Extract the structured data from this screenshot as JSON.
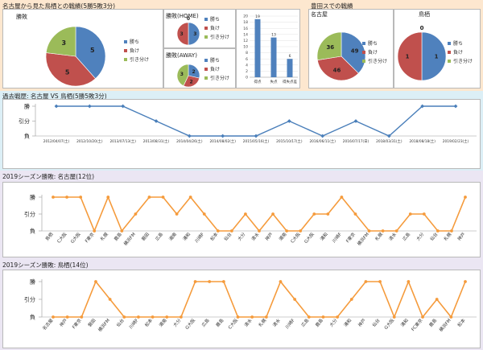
{
  "colors": {
    "win": "#4f81bd",
    "loss": "#c0504d",
    "draw": "#9bbb59",
    "line": "#4a7fba",
    "orange": "#f59b3c",
    "bar": "#4f81bd"
  },
  "sections": {
    "top_left_title": "名古屋から見た鳥栖との戦績(5勝5敗3分)",
    "top_right_title": "豊田スでの戦績",
    "history_title": "過去戦歴: 名古屋 VS 鳥栖(5勝5敗3分)",
    "nagoya_title": "2019シーズン勝敗: 名古屋(12位)",
    "tosu_title": "2019シーズン勝敗: 鳥栖(14位)"
  },
  "chart_data": [
    {
      "id": "overall",
      "type": "pie",
      "title": "勝敗",
      "labels": [
        "勝ち",
        "負け",
        "引き分け"
      ],
      "values": [
        5,
        5,
        3
      ],
      "legend": "right"
    },
    {
      "id": "home",
      "type": "pie",
      "title": "勝敗(HOME)",
      "labels": [
        "勝ち",
        "負け",
        "引き分け"
      ],
      "values": [
        3,
        3,
        0
      ],
      "legend": "right"
    },
    {
      "id": "away",
      "type": "pie",
      "title": "勝敗(AWAY)",
      "labels": [
        "勝ち",
        "負け",
        "引き分け"
      ],
      "values": [
        2,
        2,
        3
      ],
      "legend": "right"
    },
    {
      "id": "goals",
      "type": "bar",
      "categories": [
        "得点",
        "失点",
        "得失点差"
      ],
      "values": [
        19,
        13,
        6
      ],
      "ylim": [
        0,
        20
      ],
      "yticks": [
        0,
        2,
        4,
        6,
        8,
        10,
        12,
        14,
        16,
        18,
        20
      ]
    },
    {
      "id": "toyota_nagoya",
      "type": "pie",
      "title": "名古屋",
      "labels": [
        "勝ち",
        "負け",
        "引き分け"
      ],
      "values": [
        49,
        46,
        36
      ],
      "legend": "right"
    },
    {
      "id": "toyota_tosu",
      "type": "pie",
      "title": "鳥栖",
      "labels": [
        "勝ち",
        "負け",
        "引き分け"
      ],
      "values": [
        1,
        1,
        0
      ],
      "legend": "right"
    },
    {
      "id": "history",
      "type": "line",
      "y_levels": [
        "勝",
        "引分",
        "負"
      ],
      "x": [
        "2012/04/07(土)",
        "2012/10/20(土)",
        "2013/07/13(土)",
        "2013/08/31(土)",
        "2014/04/26(土)",
        "2014/08/02(土)",
        "2015/05/16(土)",
        "2015/10/17(土)",
        "2016/06/11(土)",
        "2016/07/17(日)",
        "2018/03/31(土)",
        "2018/08/18(土)",
        "2019/02/23(土)"
      ],
      "values": [
        2,
        2,
        2,
        1,
        0,
        0,
        0,
        1,
        0,
        1,
        0,
        2,
        2
      ]
    },
    {
      "id": "nagoya_2019",
      "type": "line",
      "y_levels": [
        "勝",
        "引分",
        "負"
      ],
      "x": [
        "鳥栖",
        "C大阪",
        "G大阪",
        "F東京",
        "札幌",
        "鹿島",
        "横浜FM",
        "磐田",
        "広島",
        "湘南",
        "浦和",
        "川崎F",
        "松本",
        "仙台",
        "大分",
        "清水",
        "神戸",
        "湘南",
        "C大阪",
        "G大阪",
        "浦和",
        "川崎F",
        "F東京",
        "横浜FM",
        "札幌",
        "清水",
        "広島",
        "大分",
        "仙台",
        "札幌",
        "神戸"
      ],
      "values": [
        2,
        2,
        2,
        0,
        2,
        0,
        1,
        2,
        2,
        1,
        2,
        1,
        0,
        0,
        1,
        0,
        1,
        0,
        0,
        1,
        1,
        2,
        1,
        0,
        0,
        0,
        1,
        1,
        0,
        0,
        2
      ]
    },
    {
      "id": "tosu_2019",
      "type": "line",
      "y_levels": [
        "勝",
        "引分",
        "負"
      ],
      "x": [
        "名古屋",
        "神戸",
        "F東京",
        "磐田",
        "横浜FM",
        "仙台",
        "川崎F",
        "松本",
        "湘南",
        "大分",
        "G大阪",
        "広島",
        "鹿島",
        "C大阪",
        "清水",
        "札幌",
        "清水",
        "川崎F",
        "広島",
        "鹿島",
        "大分",
        "浦和",
        "神戸",
        "仙台",
        "G大阪",
        "浦和",
        "FC東京",
        "鹿島",
        "横浜FM",
        "松本"
      ],
      "values": [
        0,
        0,
        0,
        2,
        1,
        0,
        0,
        0,
        0,
        0,
        2,
        2,
        2,
        0,
        0,
        0,
        2,
        1,
        0,
        0,
        0,
        1,
        2,
        2,
        0,
        2,
        0,
        1,
        0,
        2
      ]
    }
  ]
}
